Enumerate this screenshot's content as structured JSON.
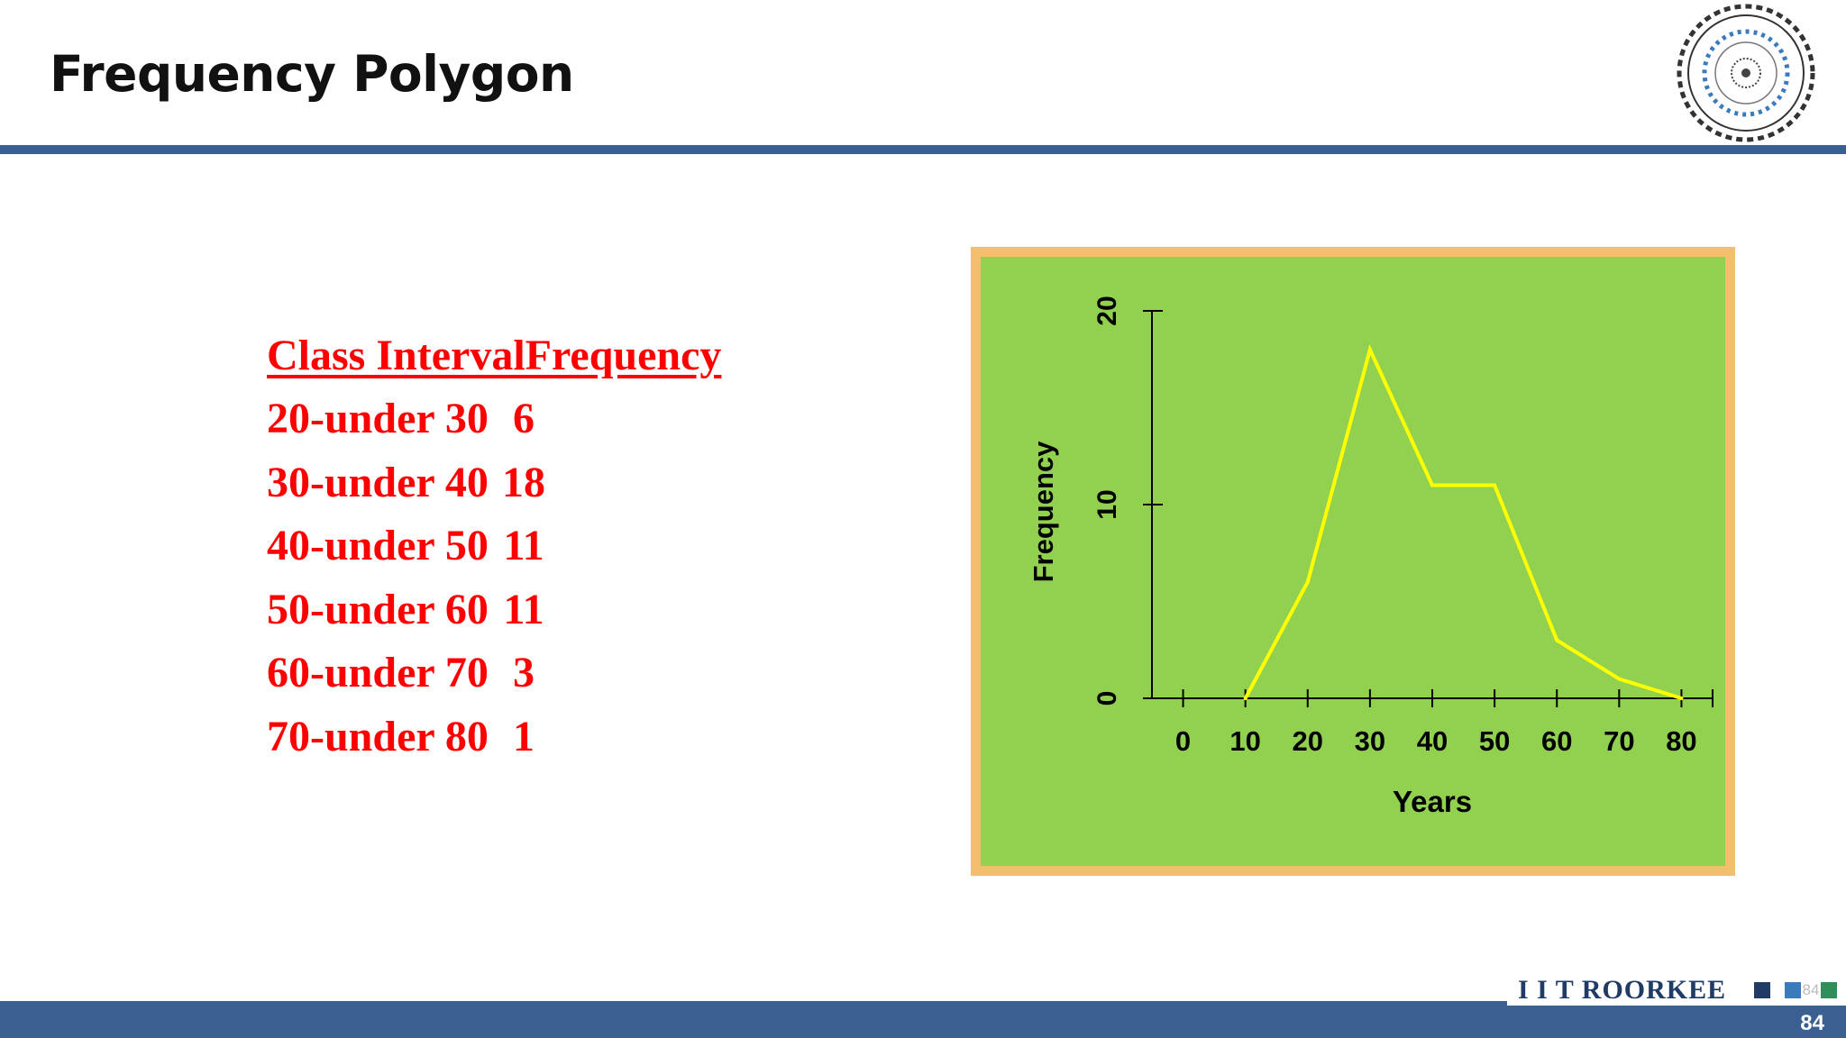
{
  "slide": {
    "title": "Frequency Polygon",
    "page_number": "84",
    "footer_brand": "I I T ROORKEE",
    "footer_brand_page": "84",
    "logo_text": "INDIAN INSTITUTE OF TECHNOLOGY ROORKEE"
  },
  "table": {
    "header": "Class IntervalFrequency",
    "rows": [
      {
        "interval": "20-under 30",
        "frequency": "6"
      },
      {
        "interval": "30-under 40",
        "frequency": "18"
      },
      {
        "interval": "40-under 50",
        "frequency": "11"
      },
      {
        "interval": "50-under 60",
        "frequency": "11"
      },
      {
        "interval": "60-under 70",
        "frequency": "3"
      },
      {
        "interval": "70-under 80",
        "frequency": "1"
      }
    ]
  },
  "colors": {
    "table_text": "#ff0000",
    "rule": "#3a5f91",
    "chart_background": "#92d050",
    "chart_border": "#f2bf6e",
    "line": "#ffff00"
  },
  "chart_data": {
    "type": "line",
    "title": "",
    "xlabel": "Years",
    "ylabel": "Frequency",
    "x_ticks": [
      0,
      10,
      20,
      30,
      40,
      50,
      60,
      70,
      80
    ],
    "y_ticks": [
      0,
      10,
      20
    ],
    "xlim": [
      -5,
      85
    ],
    "ylim": [
      0,
      20
    ],
    "grid": false,
    "series": [
      {
        "x": [
          10,
          20,
          30,
          40,
          50,
          60,
          70,
          80
        ],
        "y": [
          0,
          6,
          18,
          11,
          11,
          3,
          1,
          0
        ]
      }
    ]
  }
}
